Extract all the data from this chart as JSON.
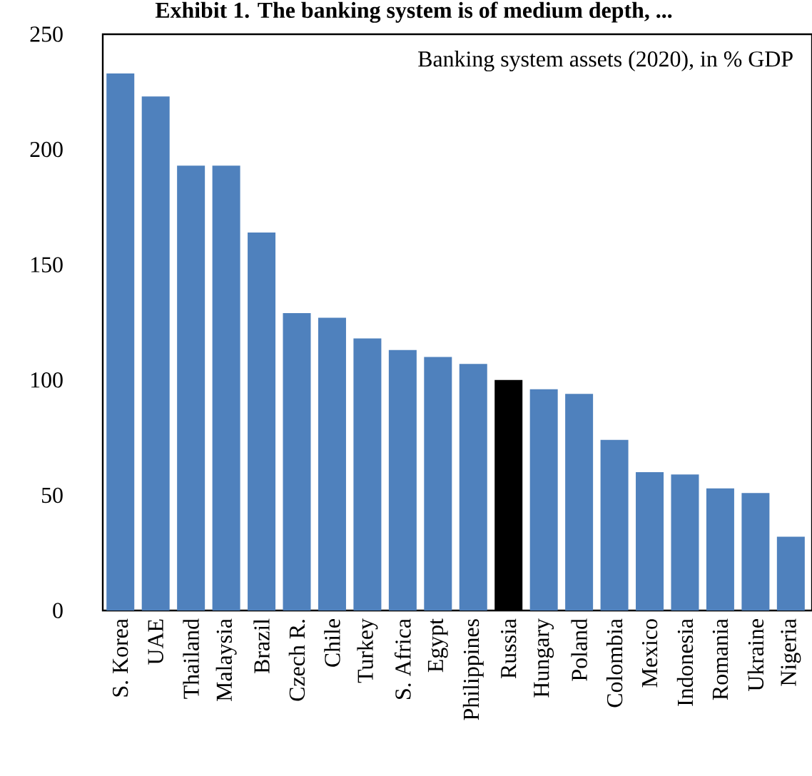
{
  "chart_data": {
    "type": "bar",
    "title": "Exhibit 1. The banking system is of medium depth, ...",
    "annotations": [
      "Banking system assets (2020), in % GDP"
    ],
    "categories": [
      "S. Korea",
      "UAE",
      "Thailand",
      "Malaysia",
      "Brazil",
      "Czech R.",
      "Chile",
      "Turkey",
      "S. Africa",
      "Egypt",
      "Philippines",
      "Russia",
      "Hungary",
      "Poland",
      "Colombia",
      "Mexico",
      "Indonesia",
      "Romania",
      "Ukraine",
      "Nigeria"
    ],
    "values": [
      233,
      223,
      193,
      193,
      164,
      129,
      127,
      118,
      113,
      110,
      107,
      100,
      96,
      94,
      74,
      60,
      59,
      53,
      51,
      32
    ],
    "colors": [
      "#4f81bd",
      "#4f81bd",
      "#4f81bd",
      "#4f81bd",
      "#4f81bd",
      "#4f81bd",
      "#4f81bd",
      "#4f81bd",
      "#4f81bd",
      "#4f81bd",
      "#4f81bd",
      "#000000",
      "#4f81bd",
      "#4f81bd",
      "#4f81bd",
      "#4f81bd",
      "#4f81bd",
      "#4f81bd",
      "#4f81bd",
      "#4f81bd"
    ],
    "ylim": [
      0,
      250
    ],
    "yticks": [
      0,
      50,
      100,
      150,
      200,
      250
    ]
  }
}
